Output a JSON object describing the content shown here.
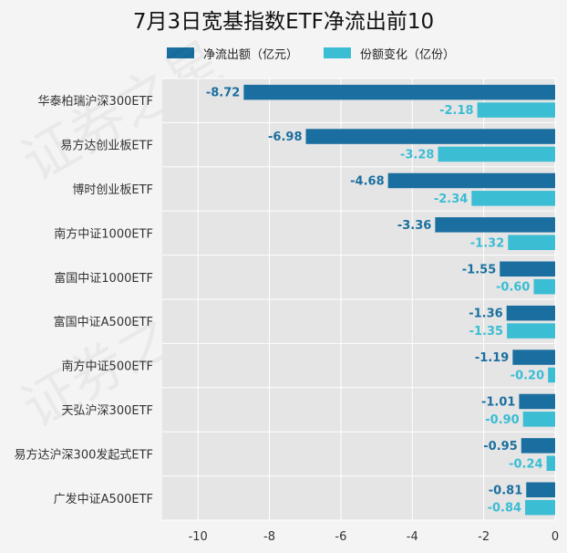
{
  "colors": {
    "series1": "#1a6fa0",
    "series2": "#3bbdd4",
    "plot_bg": "#e5e5e5",
    "grid": "#ffffff"
  },
  "chart_data": {
    "type": "bar",
    "orientation": "horizontal",
    "title": "7月3日宽基指数ETF净流出前10",
    "categories": [
      "华泰柏瑞沪深300ETF",
      "易方达创业板ETF",
      "博时创业板ETF",
      "南方中证1000ETF",
      "富国中证1000ETF",
      "富国中证A500ETF",
      "南方中证500ETF",
      "天弘沪深300ETF",
      "易方达沪深300发起式ETF",
      "广发中证A500ETF"
    ],
    "series": [
      {
        "name": "净流出额（亿元）",
        "values": [
          -8.72,
          -6.98,
          -4.68,
          -3.36,
          -1.55,
          -1.36,
          -1.19,
          -1.01,
          -0.95,
          -0.81
        ],
        "labels": [
          "-8.72",
          "-6.98",
          "-4.68",
          "-3.36",
          "-1.55",
          "-1.36",
          "-1.19",
          "-1.01",
          "-0.95",
          "-0.81"
        ]
      },
      {
        "name": "份额变化（亿份）",
        "values": [
          -2.18,
          -3.28,
          -2.34,
          -1.32,
          -0.6,
          -1.35,
          -0.2,
          -0.9,
          -0.24,
          -0.84
        ],
        "labels": [
          "-2.18",
          "-3.28",
          "-2.34",
          "-1.32",
          "-0.60",
          "-1.35",
          "-0.20",
          "-0.90",
          "-0.24",
          "-0.84"
        ]
      }
    ],
    "xlim": [
      -11,
      0
    ],
    "xticks": [
      -10,
      -8,
      -6,
      -4,
      -2,
      0
    ],
    "xtick_labels": [
      "-10",
      "-8",
      "-6",
      "-4",
      "-2",
      "0"
    ],
    "grid": true,
    "legend_position": "top"
  }
}
